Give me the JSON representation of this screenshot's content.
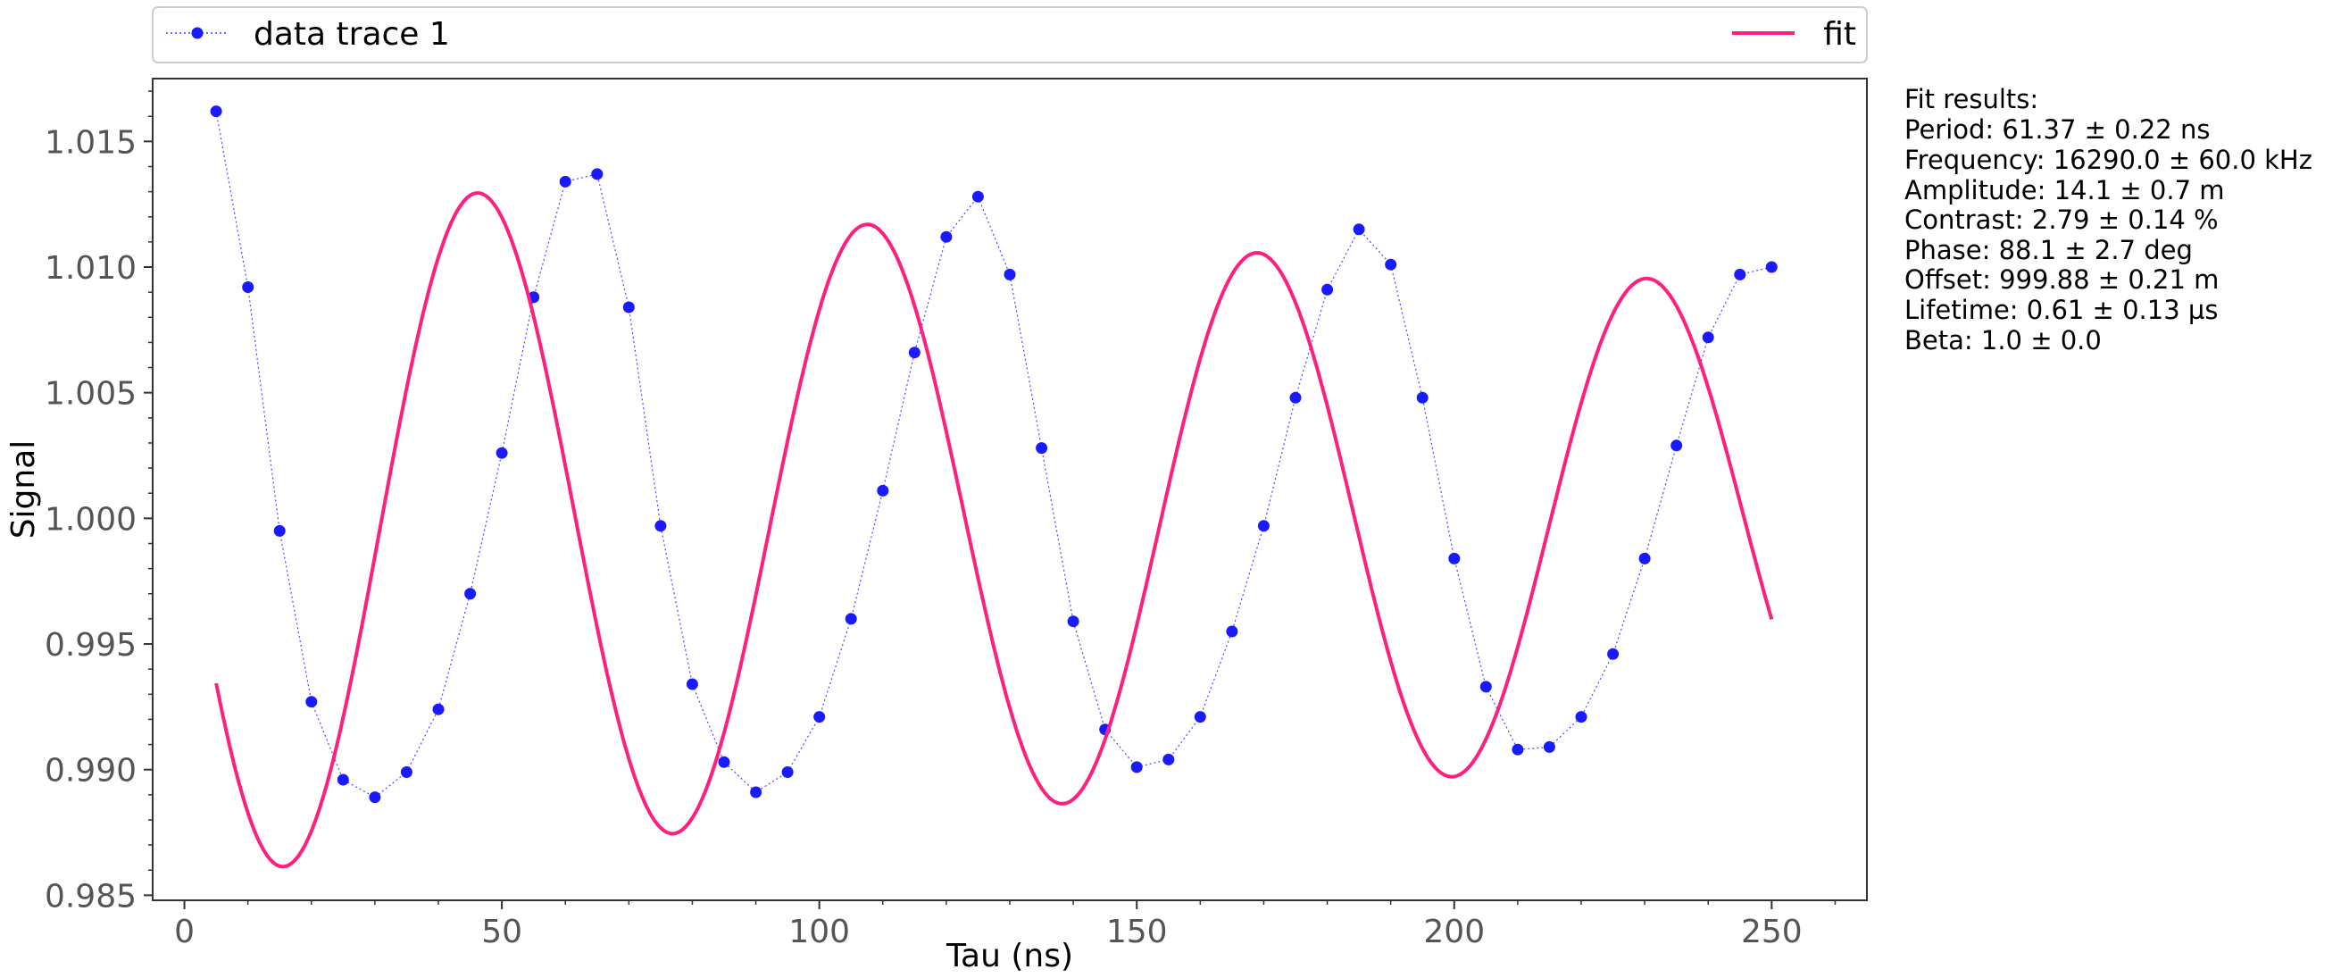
{
  "chart_data": {
    "type": "line",
    "xlabel": "Tau (ns)",
    "ylabel": "Signal",
    "xlim": [
      -5,
      265
    ],
    "ylim": [
      0.9848,
      1.0175
    ],
    "xticks": [
      0,
      50,
      100,
      150,
      200,
      250
    ],
    "yticks": [
      0.985,
      0.99,
      0.995,
      1.0,
      1.005,
      1.01,
      1.015
    ],
    "ytick_labels": [
      "0.985",
      "0.990",
      "0.995",
      "1.000",
      "1.005",
      "1.010",
      "1.015"
    ],
    "grid": false,
    "legend_position": "top, outside plot",
    "series": [
      {
        "name": "data trace 1",
        "style": "dotted line with filled circle markers",
        "color": "#1a1aff",
        "x": [
          5,
          10,
          15,
          20,
          25,
          30,
          35,
          40,
          45,
          50,
          55,
          60,
          65,
          70,
          75,
          80,
          85,
          90,
          95,
          100,
          105,
          110,
          115,
          120,
          125,
          130,
          135,
          140,
          145,
          150,
          155,
          160,
          165,
          170,
          175,
          180,
          185,
          190,
          195,
          200,
          205,
          210,
          215,
          220,
          225,
          230,
          235,
          240,
          245,
          250
        ],
        "y": [
          1.0162,
          1.0092,
          0.9995,
          0.9927,
          0.9896,
          0.9889,
          0.9899,
          0.9924,
          0.997,
          1.0026,
          1.0088,
          1.0134,
          1.0137,
          1.0084,
          0.9997,
          0.9934,
          0.9903,
          0.9891,
          0.9899,
          0.9921,
          0.996,
          1.0011,
          1.0066,
          1.0112,
          1.0128,
          1.0097,
          1.0028,
          0.9959,
          0.9916,
          0.9901,
          0.9904,
          0.9921,
          0.9955,
          0.9997,
          1.0048,
          1.0091,
          1.0115,
          1.0101,
          1.0048,
          0.9984,
          0.9933,
          0.9908,
          0.9909,
          0.9921,
          0.9946,
          0.9984,
          1.0029,
          1.0072,
          1.0097,
          1.01
        ]
      },
      {
        "name": "fit",
        "style": "solid line",
        "color": "#ff1f7f",
        "params": {
          "period_ns": 61.37,
          "amplitude": 0.0141,
          "phase_deg": 88.1,
          "offset": 0.99988,
          "lifetime_ns": 610,
          "beta": 1.0
        },
        "x_range": [
          5,
          250
        ]
      }
    ],
    "fit_results": {
      "title": "Fit results:",
      "lines": [
        "Period: 61.37 ± 0.22 ns",
        "Frequency: 16290.0 ± 60.0 kHz",
        "Amplitude: 14.1 ± 0.7 m",
        "Contrast: 2.79 ± 0.14 %",
        "Phase: 88.1 ± 2.7 deg",
        "Offset: 999.88 ± 0.21 m",
        "Lifetime: 0.61 ± 0.13 µs",
        "Beta: 1.0 ± 0.0"
      ]
    }
  }
}
